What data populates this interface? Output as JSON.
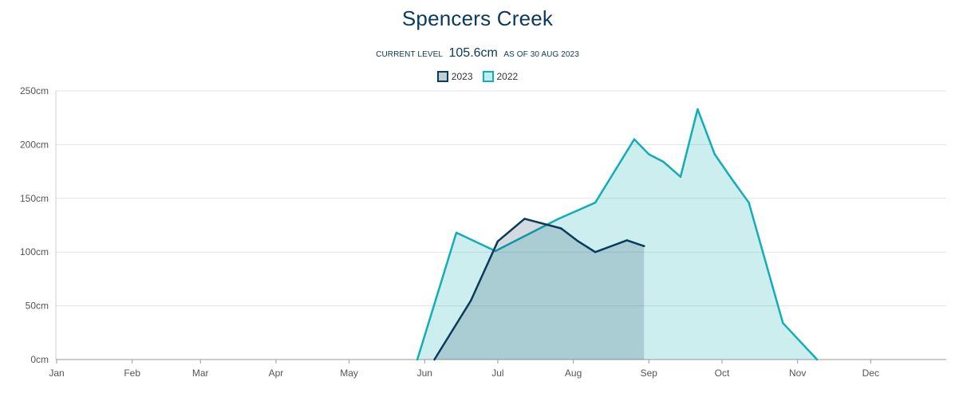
{
  "header": {
    "title": "Spencers Creek",
    "level_prefix": "CURRENT LEVEL",
    "level_value": "105.6cm",
    "level_suffix": "AS OF 30 AUG 2023"
  },
  "chart_data": {
    "type": "area",
    "title": "Spencers Creek",
    "ylim": [
      0,
      250
    ],
    "y_ticks": [
      0,
      50,
      100,
      150,
      200,
      250
    ],
    "y_tick_labels": [
      "0cm",
      "50cm",
      "100cm",
      "150cm",
      "200cm",
      "250cm"
    ],
    "x_tick_labels": [
      "Jan",
      "Feb",
      "Mar",
      "Apr",
      "May",
      "Jun",
      "Jul",
      "Aug",
      "Sep",
      "Oct",
      "Nov",
      "Dec"
    ],
    "grid": true,
    "legend_placement": "top-center",
    "series": [
      {
        "name": "2023",
        "color": "#0b3a5a",
        "fill": "rgba(11,58,90,0.18)",
        "x": [
          "2023-06-05",
          "2023-06-20",
          "2023-07-01",
          "2023-07-12",
          "2023-07-27",
          "2023-08-03",
          "2023-08-10",
          "2023-08-23",
          "2023-08-30"
        ],
        "values": [
          0,
          55,
          110,
          131,
          122,
          110,
          100,
          111,
          105.6
        ]
      },
      {
        "name": "2022",
        "color": "#12aeb5",
        "fill": "rgba(18,174,181,0.21)",
        "x": [
          "2022-05-29",
          "2022-06-14",
          "2022-06-30",
          "2022-07-26",
          "2022-08-10",
          "2022-08-26",
          "2022-09-01",
          "2022-09-07",
          "2022-09-14",
          "2022-09-21",
          "2022-09-28",
          "2022-10-05",
          "2022-10-12",
          "2022-10-26",
          "2022-11-09"
        ],
        "values": [
          0,
          118,
          101,
          131,
          146,
          205,
          191,
          184,
          170,
          233,
          191,
          168,
          146,
          34,
          0
        ]
      }
    ]
  }
}
